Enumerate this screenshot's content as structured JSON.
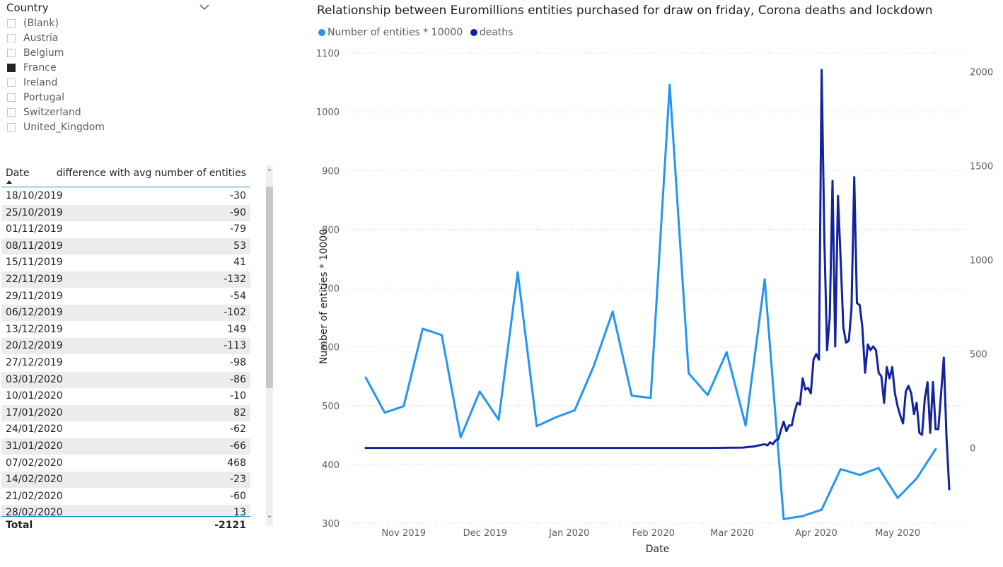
{
  "slicer": {
    "title": "Country",
    "items": [
      {
        "label": "(Blank)",
        "checked": false
      },
      {
        "label": "Austria",
        "checked": false
      },
      {
        "label": "Belgium",
        "checked": false
      },
      {
        "label": "France",
        "checked": true
      },
      {
        "label": "Ireland",
        "checked": false
      },
      {
        "label": "Portugal",
        "checked": false
      },
      {
        "label": "Switzerland",
        "checked": false
      },
      {
        "label": "United_Kingdom",
        "checked": false
      }
    ]
  },
  "table": {
    "headers": {
      "date": "Date",
      "value": "difference with avg number of entities"
    },
    "rows": [
      {
        "date": "18/10/2019",
        "value": "-30"
      },
      {
        "date": "25/10/2019",
        "value": "-90"
      },
      {
        "date": "01/11/2019",
        "value": "-79"
      },
      {
        "date": "08/11/2019",
        "value": "53"
      },
      {
        "date": "15/11/2019",
        "value": "41"
      },
      {
        "date": "22/11/2019",
        "value": "-132"
      },
      {
        "date": "29/11/2019",
        "value": "-54"
      },
      {
        "date": "06/12/2019",
        "value": "-102"
      },
      {
        "date": "13/12/2019",
        "value": "149"
      },
      {
        "date": "20/12/2019",
        "value": "-113"
      },
      {
        "date": "27/12/2019",
        "value": "-98"
      },
      {
        "date": "03/01/2020",
        "value": "-86"
      },
      {
        "date": "10/01/2020",
        "value": "-10"
      },
      {
        "date": "17/01/2020",
        "value": "82"
      },
      {
        "date": "24/01/2020",
        "value": "-62"
      },
      {
        "date": "31/01/2020",
        "value": "-66"
      },
      {
        "date": "07/02/2020",
        "value": "468"
      },
      {
        "date": "14/02/2020",
        "value": "-23"
      },
      {
        "date": "21/02/2020",
        "value": "-60"
      },
      {
        "date": "28/02/2020",
        "value": "13"
      }
    ],
    "total_label": "Total",
    "total_value": "-2121",
    "shade_color": "#ececec"
  },
  "chart_data": {
    "type": "line",
    "title": "Relationship between Euromillions entities purchased for draw on friday, Corona deaths and lockdown",
    "xlabel": "Date",
    "ylabel": "Number of entities * 10000",
    "ylim": [
      300,
      1100
    ],
    "y_ticks": [
      300,
      400,
      500,
      600,
      700,
      800,
      900,
      1000,
      1100
    ],
    "y2lim": [
      -400,
      2100
    ],
    "y2_ticks": [
      0,
      500,
      1000,
      1500,
      2000
    ],
    "xlim": [
      "2019-10-12",
      "2020-05-26"
    ],
    "x_ticks": [
      {
        "date": "2019-11-01",
        "label": "Nov 2019"
      },
      {
        "date": "2019-12-01",
        "label": "Dec 2019"
      },
      {
        "date": "2020-01-01",
        "label": "Jan 2020"
      },
      {
        "date": "2020-02-01",
        "label": "Feb 2020"
      },
      {
        "date": "2020-03-01",
        "label": "Mar 2020"
      },
      {
        "date": "2020-04-01",
        "label": "Apr 2020"
      },
      {
        "date": "2020-05-01",
        "label": "May 2020"
      }
    ],
    "grid": true,
    "legend": "top-left",
    "series": [
      {
        "name": "Number of entities * 10000",
        "axis": "left",
        "color": "#2196f3",
        "points": [
          [
            "2019-10-18",
            548
          ],
          [
            "2019-10-25",
            488
          ],
          [
            "2019-11-01",
            499
          ],
          [
            "2019-11-08",
            631
          ],
          [
            "2019-11-15",
            620
          ],
          [
            "2019-11-22",
            446
          ],
          [
            "2019-11-29",
            524
          ],
          [
            "2019-12-06",
            476
          ],
          [
            "2019-12-13",
            727
          ],
          [
            "2019-12-20",
            465
          ],
          [
            "2019-12-27",
            480
          ],
          [
            "2020-01-03",
            492
          ],
          [
            "2020-01-10",
            567
          ],
          [
            "2020-01-17",
            660
          ],
          [
            "2020-01-24",
            517
          ],
          [
            "2020-01-31",
            513
          ],
          [
            "2020-02-07",
            1046
          ],
          [
            "2020-02-14",
            555
          ],
          [
            "2020-02-21",
            518
          ],
          [
            "2020-02-28",
            591
          ],
          [
            "2020-03-06",
            466
          ],
          [
            "2020-03-13",
            715
          ],
          [
            "2020-03-20",
            307
          ],
          [
            "2020-03-27",
            312
          ],
          [
            "2020-04-03",
            323
          ],
          [
            "2020-04-10",
            392
          ],
          [
            "2020-04-17",
            382
          ],
          [
            "2020-04-24",
            394
          ],
          [
            "2020-05-01",
            343
          ],
          [
            "2020-05-08",
            376
          ],
          [
            "2020-05-15",
            426
          ]
        ]
      },
      {
        "name": "deaths",
        "axis": "right",
        "color": "#12239e",
        "points": [
          [
            "2019-10-18",
            0
          ],
          [
            "2020-02-20",
            0
          ],
          [
            "2020-03-01",
            1
          ],
          [
            "2020-03-05",
            2
          ],
          [
            "2020-03-07",
            5
          ],
          [
            "2020-03-09",
            8
          ],
          [
            "2020-03-11",
            14
          ],
          [
            "2020-03-13",
            20
          ],
          [
            "2020-03-14",
            13
          ],
          [
            "2020-03-15",
            30
          ],
          [
            "2020-03-16",
            20
          ],
          [
            "2020-03-17",
            40
          ],
          [
            "2020-03-18",
            45
          ],
          [
            "2020-03-19",
            95
          ],
          [
            "2020-03-20",
            140
          ],
          [
            "2020-03-21",
            90
          ],
          [
            "2020-03-22",
            120
          ],
          [
            "2020-03-23",
            120
          ],
          [
            "2020-03-24",
            190
          ],
          [
            "2020-03-25",
            240
          ],
          [
            "2020-03-26",
            230
          ],
          [
            "2020-03-27",
            370
          ],
          [
            "2020-03-28",
            310
          ],
          [
            "2020-03-29",
            320
          ],
          [
            "2020-03-30",
            290
          ],
          [
            "2020-03-31",
            470
          ],
          [
            "2020-04-01",
            500
          ],
          [
            "2020-04-02",
            470
          ],
          [
            "2020-04-03",
            2010
          ],
          [
            "2020-04-04",
            1100
          ],
          [
            "2020-04-05",
            520
          ],
          [
            "2020-04-06",
            700
          ],
          [
            "2020-04-07",
            1420
          ],
          [
            "2020-04-08",
            540
          ],
          [
            "2020-04-09",
            1340
          ],
          [
            "2020-04-10",
            1000
          ],
          [
            "2020-04-11",
            640
          ],
          [
            "2020-04-12",
            560
          ],
          [
            "2020-04-13",
            570
          ],
          [
            "2020-04-14",
            740
          ],
          [
            "2020-04-15",
            1440
          ],
          [
            "2020-04-16",
            770
          ],
          [
            "2020-04-17",
            760
          ],
          [
            "2020-04-18",
            640
          ],
          [
            "2020-04-19",
            400
          ],
          [
            "2020-04-20",
            550
          ],
          [
            "2020-04-21",
            520
          ],
          [
            "2020-04-22",
            540
          ],
          [
            "2020-04-23",
            520
          ],
          [
            "2020-04-24",
            400
          ],
          [
            "2020-04-25",
            380
          ],
          [
            "2020-04-26",
            240
          ],
          [
            "2020-04-27",
            430
          ],
          [
            "2020-04-28",
            370
          ],
          [
            "2020-04-29",
            430
          ],
          [
            "2020-04-30",
            290
          ],
          [
            "2020-05-01",
            220
          ],
          [
            "2020-05-02",
            170
          ],
          [
            "2020-05-03",
            130
          ],
          [
            "2020-05-04",
            300
          ],
          [
            "2020-05-05",
            330
          ],
          [
            "2020-05-06",
            290
          ],
          [
            "2020-05-07",
            180
          ],
          [
            "2020-05-08",
            240
          ],
          [
            "2020-05-09",
            80
          ],
          [
            "2020-05-10",
            70
          ],
          [
            "2020-05-11",
            260
          ],
          [
            "2020-05-12",
            350
          ],
          [
            "2020-05-13",
            80
          ],
          [
            "2020-05-14",
            350
          ],
          [
            "2020-05-15",
            100
          ],
          [
            "2020-05-16",
            100
          ],
          [
            "2020-05-18",
            480
          ],
          [
            "2020-05-19",
            60
          ],
          [
            "2020-05-20",
            -220
          ]
        ]
      }
    ]
  }
}
